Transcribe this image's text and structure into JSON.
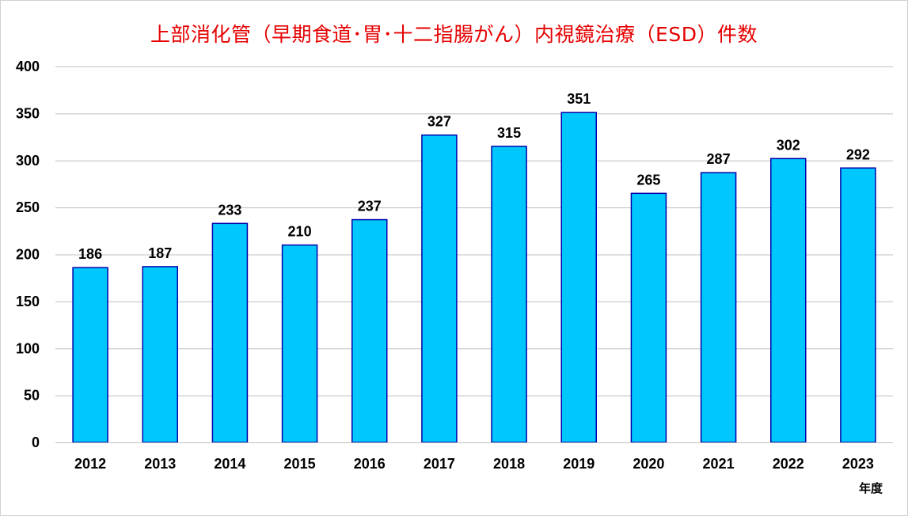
{
  "chart_data": {
    "type": "bar",
    "title": "上部消化管（早期食道･胃･十二指腸がん）内視鏡治療（ESD）件数",
    "xlabel": "年度",
    "ylabel": "",
    "categories": [
      "2012",
      "2013",
      "2014",
      "2015",
      "2016",
      "2017",
      "2018",
      "2019",
      "2020",
      "2021",
      "2022",
      "2023"
    ],
    "values": [
      186,
      187,
      233,
      210,
      237,
      327,
      315,
      351,
      265,
      287,
      302,
      292
    ],
    "ylim": [
      0,
      400
    ],
    "yticks": [
      0,
      50,
      100,
      150,
      200,
      250,
      300,
      350,
      400
    ],
    "grid": true,
    "legend": "none",
    "colors": {
      "bar_fill": "#00c8ff",
      "bar_stroke": "#0000aa",
      "title": "#e60000",
      "grid": "#bfbfbf"
    }
  }
}
